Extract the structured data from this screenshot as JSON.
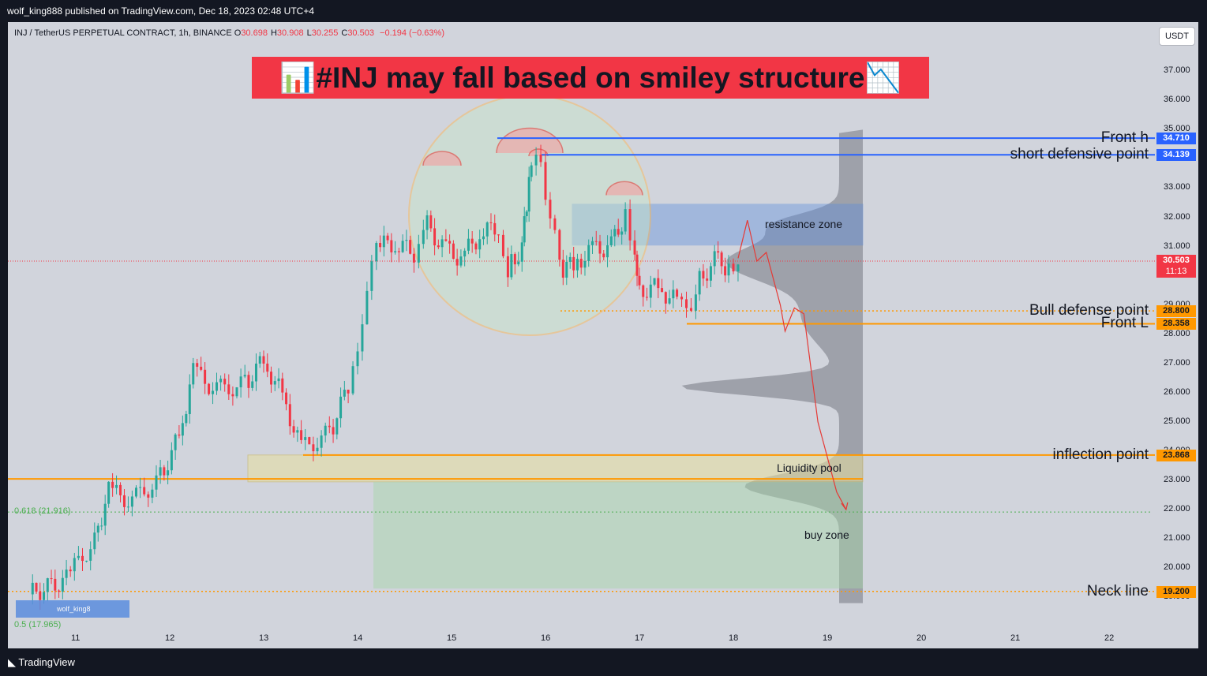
{
  "header": {
    "published_by": "wolf_king888 published on TradingView.com, Dec 18, 2023 02:48 UTC+4"
  },
  "symbol": {
    "name": "INJ / TetherUS PERPETUAL CONTRACT, 1h, BINANCE",
    "ohlc": [
      {
        "k": "O",
        "v": "30.698"
      },
      {
        "k": "H",
        "v": "30.908"
      },
      {
        "k": "L",
        "v": "30.255"
      },
      {
        "k": "C",
        "v": "30.503"
      }
    ],
    "change": "−0.194 (−0.63%)"
  },
  "currency": "USDT",
  "title_banner": "📊#INJ may fall based on smiley structure📉",
  "footer": {
    "brand": "TradingView"
  },
  "user_tag": "wolf_king8",
  "fib_labels": [
    {
      "text": "0.618 (21.916)",
      "value": 21.916
    },
    {
      "text": "0.5 (17.965)",
      "value": 19.0
    }
  ],
  "colors": {
    "bull": "#26a69a",
    "bear": "#f23645",
    "blue_line": "#2962ff",
    "orange_line": "#ff9800",
    "price_tag": "#f23645",
    "resistance_fill": "#5b8dde",
    "liquidity_fill": "#e8e0a0",
    "buy_fill": "#a5d6a7",
    "circle_fill": "#c8e6c9",
    "circle_stroke": "#ffb74d"
  },
  "annotations": [
    {
      "label": "Front h",
      "price": 34.71,
      "tag": "34.710",
      "color": "#2962ff"
    },
    {
      "label": "short defensive point",
      "price": 34.139,
      "tag": "34.139",
      "color": "#2962ff"
    },
    {
      "label": "Bull defense point",
      "price": 28.8,
      "tag": "28.800",
      "color": "#ff9800"
    },
    {
      "label": "Front L",
      "price": 28.358,
      "tag": "28.358",
      "color": "#ff9800"
    },
    {
      "label": "inflection point",
      "price": 23.868,
      "tag": "23.868",
      "color": "#ff9800"
    },
    {
      "label": "Neck line",
      "price": 19.2,
      "tag": "19.200",
      "color": "#ff9800"
    }
  ],
  "zones": [
    {
      "label": "resistance zone",
      "top": 32.45,
      "bottom": 31.05
    },
    {
      "label": "Liquidity pool",
      "top": 23.868,
      "bottom": 22.95
    },
    {
      "label": "buy zone",
      "top": 22.95,
      "bottom": 19.3
    }
  ],
  "current_price": {
    "value": 30.503,
    "tag": "30.503",
    "timer": "11:13"
  },
  "chart_data": {
    "type": "candlestick",
    "y_ticks": [
      19,
      20,
      21,
      22,
      23,
      24,
      25,
      26,
      27,
      28,
      29,
      30,
      31,
      32,
      33,
      34,
      35,
      36,
      37
    ],
    "y_tick_labels": [
      "19.000",
      "20.000",
      "21.000",
      "22.000",
      "23.000",
      "24.000",
      "25.000",
      "26.000",
      "27.000",
      "28.000",
      "29.000",
      "30.000",
      "31.000",
      "32.000",
      "33.000",
      "34.000",
      "35.000",
      "36.000",
      "37.000"
    ],
    "x_ticks": [
      "11",
      "12",
      "13",
      "14",
      "15",
      "16",
      "17",
      "18",
      "19",
      "20",
      "21",
      "22"
    ],
    "ylim": [
      18.5,
      37.5
    ],
    "grid": false,
    "close_path": [
      {
        "d": 10.5,
        "p": 19.1
      },
      {
        "d": 10.9,
        "p": 19.6
      },
      {
        "d": 11.2,
        "p": 21.0
      },
      {
        "d": 11.35,
        "p": 22.6
      },
      {
        "d": 11.6,
        "p": 22.3
      },
      {
        "d": 11.9,
        "p": 23.1
      },
      {
        "d": 12.1,
        "p": 24.5
      },
      {
        "d": 12.25,
        "p": 26.7
      },
      {
        "d": 12.5,
        "p": 26.1
      },
      {
        "d": 12.8,
        "p": 26.3
      },
      {
        "d": 13.0,
        "p": 27.1
      },
      {
        "d": 13.2,
        "p": 25.9
      },
      {
        "d": 13.4,
        "p": 24.1
      },
      {
        "d": 13.7,
        "p": 24.6
      },
      {
        "d": 13.9,
        "p": 26.2
      },
      {
        "d": 14.0,
        "p": 27.5
      },
      {
        "d": 14.1,
        "p": 29.5
      },
      {
        "d": 14.2,
        "p": 31.0
      },
      {
        "d": 14.4,
        "p": 31.1
      },
      {
        "d": 14.6,
        "p": 30.8
      },
      {
        "d": 14.7,
        "p": 31.9
      },
      {
        "d": 14.9,
        "p": 31.0
      },
      {
        "d": 15.1,
        "p": 30.6
      },
      {
        "d": 15.3,
        "p": 31.4
      },
      {
        "d": 15.5,
        "p": 31.7
      },
      {
        "d": 15.6,
        "p": 30.3
      },
      {
        "d": 15.75,
        "p": 30.9
      },
      {
        "d": 15.8,
        "p": 32.5
      },
      {
        "d": 15.85,
        "p": 34.0
      },
      {
        "d": 15.95,
        "p": 33.6
      },
      {
        "d": 16.05,
        "p": 32.3
      },
      {
        "d": 16.15,
        "p": 30.2
      },
      {
        "d": 16.3,
        "p": 30.4
      },
      {
        "d": 16.5,
        "p": 30.9
      },
      {
        "d": 16.7,
        "p": 31.0
      },
      {
        "d": 16.85,
        "p": 32.1
      },
      {
        "d": 16.95,
        "p": 31.0
      },
      {
        "d": 17.0,
        "p": 29.5
      },
      {
        "d": 17.2,
        "p": 29.6
      },
      {
        "d": 17.4,
        "p": 29.1
      },
      {
        "d": 17.5,
        "p": 28.6
      },
      {
        "d": 17.6,
        "p": 29.7
      },
      {
        "d": 17.8,
        "p": 30.5
      },
      {
        "d": 17.95,
        "p": 30.3
      },
      {
        "d": 18.05,
        "p": 30.7
      }
    ],
    "projection_path": [
      {
        "d": 18.05,
        "p": 30.6
      },
      {
        "d": 18.15,
        "p": 31.9
      },
      {
        "d": 18.25,
        "p": 30.5
      },
      {
        "d": 18.35,
        "p": 30.8
      },
      {
        "d": 18.5,
        "p": 29.0
      },
      {
        "d": 18.55,
        "p": 28.1
      },
      {
        "d": 18.65,
        "p": 28.9
      },
      {
        "d": 18.75,
        "p": 28.7
      },
      {
        "d": 18.9,
        "p": 25.0
      },
      {
        "d": 19.1,
        "p": 22.6
      },
      {
        "d": 19.2,
        "p": 22.0
      }
    ]
  }
}
